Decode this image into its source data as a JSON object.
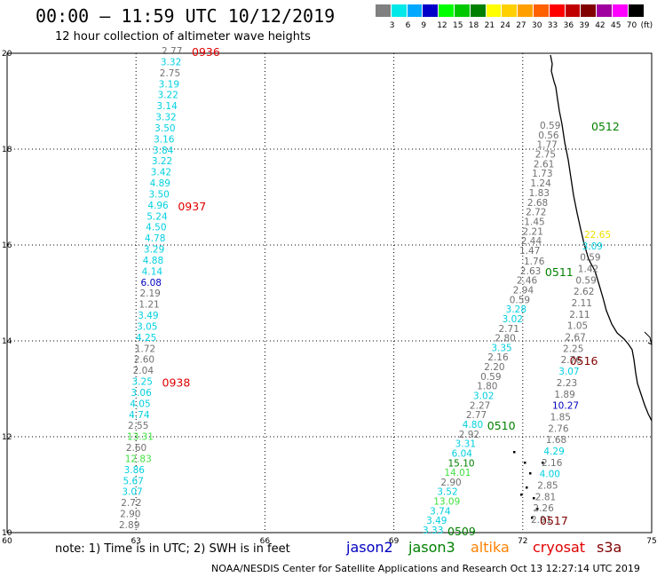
{
  "header": {
    "title": "00:00 — 11:59 UTC 10/12/2019",
    "subtitle": "12 hour collection of altimeter wave heights"
  },
  "legend": {
    "unit": "(ft)",
    "swatches": [
      {
        "label": "",
        "color": "#808080"
      },
      {
        "label": "3",
        "color": "#00e8e8"
      },
      {
        "label": "6",
        "color": "#00a8ff"
      },
      {
        "label": "9",
        "color": "#0000c8"
      },
      {
        "label": "12",
        "color": "#00ff00"
      },
      {
        "label": "15",
        "color": "#00c800"
      },
      {
        "label": "18",
        "color": "#008000"
      },
      {
        "label": "21",
        "color": "#ffff00"
      },
      {
        "label": "24",
        "color": "#ffd000"
      },
      {
        "label": "27",
        "color": "#ffa000"
      },
      {
        "label": "30",
        "color": "#ff6000"
      },
      {
        "label": "33",
        "color": "#ff0000"
      },
      {
        "label": "36",
        "color": "#c00000"
      },
      {
        "label": "39",
        "color": "#800000"
      },
      {
        "label": "42",
        "color": "#a000a0"
      },
      {
        "label": "45",
        "color": "#ff00ff"
      },
      {
        "label": "70",
        "color": "#000000"
      }
    ]
  },
  "axes": {
    "x_ticks": [
      "60",
      "63",
      "66",
      "69",
      "72",
      "75"
    ],
    "y_ticks": [
      "10",
      "12",
      "14",
      "16",
      "18",
      "20"
    ]
  },
  "colors": {
    "gray": "#707070",
    "cyan": "#00d0e0",
    "green_lt": "#40e040",
    "green_dk": "#008000",
    "blue": "#0000c0",
    "yellow": "#f0e000",
    "red": "#e00000",
    "maroon": "#800000"
  },
  "tracks": {
    "track_a": {
      "values": [
        [
          "2.77",
          "gray"
        ],
        [
          "3.32",
          "cyan"
        ],
        [
          "2.75",
          "gray"
        ],
        [
          "3.19",
          "cyan"
        ],
        [
          "3.22",
          "cyan"
        ],
        [
          "3.14",
          "cyan"
        ],
        [
          "3.32",
          "cyan"
        ],
        [
          "3.50",
          "cyan"
        ],
        [
          "3.16",
          "cyan"
        ],
        [
          "3.84",
          "cyan"
        ],
        [
          "3.22",
          "cyan"
        ],
        [
          "3.42",
          "cyan"
        ],
        [
          "4.89",
          "cyan"
        ],
        [
          "3.50",
          "cyan"
        ],
        [
          "4.96",
          "cyan"
        ],
        [
          "5.24",
          "cyan"
        ],
        [
          "4.50",
          "cyan"
        ],
        [
          "4.78",
          "cyan"
        ],
        [
          "3.29",
          "cyan"
        ],
        [
          "4.88",
          "cyan"
        ],
        [
          "4.14",
          "cyan"
        ],
        [
          "6.08",
          "blue"
        ],
        [
          "2.19",
          "gray"
        ],
        [
          "1.21",
          "gray"
        ],
        [
          "3.49",
          "cyan"
        ],
        [
          "3.05",
          "cyan"
        ],
        [
          "4.25",
          "cyan"
        ],
        [
          "1.72",
          "gray"
        ],
        [
          "2.60",
          "gray"
        ],
        [
          "2.04",
          "gray"
        ],
        [
          "3.25",
          "cyan"
        ],
        [
          "3.06",
          "cyan"
        ],
        [
          "4.05",
          "cyan"
        ],
        [
          "4.74",
          "cyan"
        ],
        [
          "2.55",
          "gray"
        ],
        [
          "13.31",
          "green_lt"
        ],
        [
          "2.60",
          "gray"
        ],
        [
          "12.83",
          "green_lt"
        ],
        [
          "3.86",
          "cyan"
        ],
        [
          "5.67",
          "cyan"
        ],
        [
          "3.07",
          "cyan"
        ],
        [
          "2.72",
          "gray"
        ],
        [
          "2.90",
          "gray"
        ],
        [
          "2.89",
          "gray"
        ]
      ],
      "times": [
        {
          "label": "0936",
          "row": 0
        },
        {
          "label": "0937",
          "row": 14
        },
        {
          "label": "0938",
          "row": 30
        }
      ]
    },
    "track_b": {
      "values": [
        [
          "1.76",
          "gray"
        ],
        [
          "2.63",
          "gray"
        ],
        [
          "2.46",
          "gray"
        ],
        [
          "2.94",
          "gray"
        ],
        [
          "0.59",
          "gray"
        ],
        [
          "3.28",
          "cyan"
        ],
        [
          "3.02",
          "cyan"
        ],
        [
          "2.71",
          "gray"
        ],
        [
          "2.80",
          "gray"
        ],
        [
          "3.35",
          "cyan"
        ],
        [
          "2.16",
          "gray"
        ],
        [
          "2.20",
          "gray"
        ],
        [
          "0.59",
          "gray"
        ],
        [
          "1.80",
          "gray"
        ],
        [
          "3.02",
          "cyan"
        ],
        [
          "2.27",
          "gray"
        ],
        [
          "2.77",
          "gray"
        ],
        [
          "4.80",
          "cyan"
        ],
        [
          "2.92",
          "gray"
        ],
        [
          "3.31",
          "cyan"
        ],
        [
          "6.04",
          "cyan"
        ],
        [
          "15.10",
          "green_dk"
        ],
        [
          "14.01",
          "green_lt"
        ],
        [
          "2.90",
          "gray"
        ],
        [
          "3.52",
          "cyan"
        ],
        [
          "13.09",
          "green_lt"
        ],
        [
          "3.74",
          "cyan"
        ],
        [
          "3.49",
          "cyan"
        ],
        [
          "3.33",
          "cyan"
        ]
      ],
      "times": [
        {
          "label": "0511",
          "row": 1
        },
        {
          "label": "0510",
          "row": 17
        },
        {
          "label": "0509",
          "row": 28
        }
      ]
    },
    "track_c": {
      "values": [
        [
          "0.59",
          "gray"
        ],
        [
          "0.56",
          "gray"
        ],
        [
          "1.77",
          "gray"
        ],
        [
          "2.75",
          "gray"
        ],
        [
          "2.61",
          "gray"
        ],
        [
          "1.73",
          "gray"
        ],
        [
          "1.24",
          "gray"
        ],
        [
          "1.83",
          "gray"
        ],
        [
          "2.68",
          "gray"
        ],
        [
          "2.72",
          "gray"
        ],
        [
          "1.45",
          "gray"
        ],
        [
          "2.21",
          "gray"
        ],
        [
          "2.44",
          "gray"
        ],
        [
          "1.47",
          "gray"
        ]
      ],
      "times": [
        {
          "label": "0512",
          "row": 0
        }
      ]
    },
    "track_d": {
      "values": [
        [
          "22.65",
          "yellow"
        ],
        [
          "3.09",
          "cyan"
        ],
        [
          "0.59",
          "gray"
        ],
        [
          "1.42",
          "gray"
        ],
        [
          "0.59",
          "gray"
        ],
        [
          "2.62",
          "gray"
        ],
        [
          "2.11",
          "gray"
        ],
        [
          "2.11",
          "gray"
        ],
        [
          "1.05",
          "gray"
        ],
        [
          "2.67",
          "gray"
        ],
        [
          "2.25",
          "gray"
        ],
        [
          "2.76",
          "gray"
        ],
        [
          "3.07",
          "cyan"
        ],
        [
          "2.23",
          "gray"
        ],
        [
          "1.89",
          "gray"
        ],
        [
          "10.27",
          "blue"
        ],
        [
          "1.85",
          "gray"
        ],
        [
          "2.76",
          "gray"
        ],
        [
          "1.68",
          "gray"
        ],
        [
          "4.29",
          "cyan"
        ],
        [
          "2.16",
          "gray"
        ],
        [
          "4.00",
          "cyan"
        ],
        [
          "2.85",
          "gray"
        ],
        [
          "2.81",
          "gray"
        ],
        [
          "2.26",
          "gray"
        ],
        [
          "2.91",
          "gray"
        ]
      ],
      "times": [
        {
          "label": "0516",
          "row": 11
        },
        {
          "label": "0517",
          "row": 25
        }
      ]
    }
  },
  "footer": {
    "note": "note: 1) Time is in UTC; 2) SWH is in feet",
    "satellites": [
      {
        "name": "jason2",
        "color": "#0000c0"
      },
      {
        "name": "jason3",
        "color": "#008000"
      },
      {
        "name": "altika",
        "color": "#ff8000"
      },
      {
        "name": "cryosat",
        "color": "#e00000"
      },
      {
        "name": "s3a",
        "color": "#800000"
      }
    ],
    "credit": "NOAA/NESDIS Center for Satellite Applications and Research    Oct 13 12:27:14 UTC 2019"
  }
}
